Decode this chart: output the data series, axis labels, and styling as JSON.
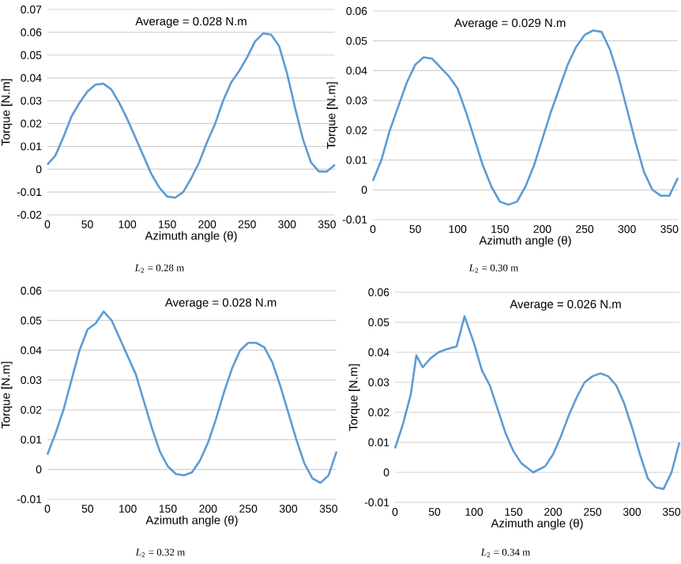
{
  "chart_data": [
    {
      "type": "line",
      "xlabel": "Azimuth angle (θ)",
      "ylabel": "Torque [N.m]",
      "x": [
        0,
        10,
        20,
        30,
        40,
        50,
        60,
        70,
        80,
        90,
        100,
        110,
        120,
        130,
        140,
        150,
        160,
        170,
        180,
        190,
        200,
        210,
        220,
        230,
        240,
        250,
        260,
        270,
        280,
        290,
        300,
        310,
        320,
        330,
        340,
        350,
        360
      ],
      "series": [
        {
          "color": "#5b9bd5",
          "values": [
            0.002,
            0.006,
            0.014,
            0.023,
            0.029,
            0.034,
            0.037,
            0.0375,
            0.035,
            0.029,
            0.022,
            0.014,
            0.006,
            -0.002,
            -0.008,
            -0.012,
            -0.0125,
            -0.01,
            -0.004,
            0.003,
            0.012,
            0.02,
            0.03,
            0.038,
            0.043,
            0.049,
            0.056,
            0.0595,
            0.059,
            0.054,
            0.042,
            0.027,
            0.013,
            0.003,
            -0.001,
            -0.001,
            0.002
          ]
        }
      ],
      "xlim": [
        0,
        360
      ],
      "xticks": [
        0,
        50,
        100,
        150,
        200,
        250,
        300,
        350
      ],
      "ylim": [
        -0.02,
        0.07
      ],
      "yticks": [
        -0.02,
        -0.01,
        0,
        0.01,
        0.02,
        0.03,
        0.04,
        0.05,
        0.06,
        0.07
      ],
      "grid": "y",
      "annotations": [
        "Average = 0.028 N.m",
        "*L*$_{2}$ = 0.28 m"
      ]
    },
    {
      "type": "line",
      "xlabel": "Azimuth angle (θ)",
      "ylabel": "Torque [N.m]",
      "x": [
        0,
        10,
        20,
        30,
        40,
        50,
        60,
        70,
        80,
        90,
        100,
        110,
        120,
        130,
        140,
        150,
        160,
        170,
        180,
        190,
        200,
        210,
        220,
        230,
        240,
        250,
        260,
        270,
        280,
        290,
        300,
        310,
        320,
        330,
        340,
        350,
        360
      ],
      "series": [
        {
          "color": "#5b9bd5",
          "values": [
            0.003,
            0.01,
            0.02,
            0.028,
            0.036,
            0.042,
            0.0445,
            0.044,
            0.041,
            0.038,
            0.034,
            0.026,
            0.017,
            0.008,
            0.001,
            -0.004,
            -0.005,
            -0.004,
            0.001,
            0.008,
            0.017,
            0.026,
            0.034,
            0.042,
            0.048,
            0.052,
            0.0535,
            0.053,
            0.047,
            0.038,
            0.027,
            0.016,
            0.006,
            0.0,
            -0.002,
            -0.002,
            0.004
          ]
        }
      ],
      "xlim": [
        0,
        360
      ],
      "xticks": [
        0,
        50,
        100,
        150,
        200,
        250,
        300,
        350
      ],
      "ylim": [
        -0.01,
        0.06
      ],
      "yticks": [
        -0.01,
        0,
        0.01,
        0.02,
        0.03,
        0.04,
        0.05,
        0.06
      ],
      "grid": "y",
      "annotations": [
        "Average = 0.029 N.m",
        "*L*$_{2}$ = 0.30 m"
      ]
    },
    {
      "type": "line",
      "xlabel": "Azimuth angle (θ)",
      "ylabel": "Torque [N.m]",
      "x": [
        0,
        10,
        20,
        30,
        40,
        50,
        60,
        70,
        80,
        90,
        100,
        110,
        120,
        130,
        140,
        150,
        160,
        170,
        180,
        190,
        200,
        210,
        220,
        230,
        240,
        250,
        260,
        270,
        280,
        290,
        300,
        310,
        320,
        330,
        340,
        350,
        360
      ],
      "series": [
        {
          "color": "#5b9bd5",
          "values": [
            0.005,
            0.012,
            0.02,
            0.03,
            0.04,
            0.047,
            0.049,
            0.053,
            0.05,
            0.044,
            0.038,
            0.032,
            0.023,
            0.014,
            0.006,
            0.001,
            -0.0015,
            -0.002,
            -0.001,
            0.003,
            0.009,
            0.017,
            0.026,
            0.034,
            0.04,
            0.0425,
            0.0425,
            0.041,
            0.036,
            0.028,
            0.019,
            0.01,
            0.002,
            -0.003,
            -0.0045,
            -0.002,
            0.006
          ]
        }
      ],
      "xlim": [
        0,
        360
      ],
      "xticks": [
        0,
        50,
        100,
        150,
        200,
        250,
        300,
        350
      ],
      "ylim": [
        -0.01,
        0.06
      ],
      "yticks": [
        -0.01,
        0,
        0.01,
        0.02,
        0.03,
        0.04,
        0.05,
        0.06
      ],
      "grid": "y",
      "annotations": [
        "Average = 0.028 N.m",
        "*L*$_{2}$ = 0.32 m"
      ]
    },
    {
      "type": "line",
      "xlabel": "Azimuth angle (θ)",
      "ylabel": "Torque [N.m]",
      "x": [
        0,
        10,
        20,
        27,
        35,
        45,
        55,
        65,
        78,
        88,
        100,
        110,
        120,
        130,
        140,
        150,
        160,
        175,
        190,
        200,
        210,
        220,
        230,
        240,
        250,
        260,
        270,
        280,
        290,
        300,
        310,
        320,
        330,
        340,
        350,
        360
      ],
      "series": [
        {
          "color": "#5b9bd5",
          "values": [
            0.008,
            0.016,
            0.026,
            0.039,
            0.035,
            0.038,
            0.04,
            0.041,
            0.042,
            0.052,
            0.043,
            0.034,
            0.029,
            0.021,
            0.013,
            0.007,
            0.003,
            0.0,
            0.002,
            0.006,
            0.012,
            0.019,
            0.025,
            0.03,
            0.032,
            0.033,
            0.032,
            0.029,
            0.023,
            0.015,
            0.006,
            -0.002,
            -0.005,
            -0.0055,
            0.0,
            0.01
          ]
        }
      ],
      "xlim": [
        0,
        360
      ],
      "xticks": [
        0,
        50,
        100,
        150,
        200,
        250,
        300,
        350
      ],
      "ylim": [
        -0.01,
        0.06
      ],
      "yticks": [
        -0.01,
        0,
        0.01,
        0.02,
        0.03,
        0.04,
        0.05,
        0.06
      ],
      "grid": "y",
      "annotations": [
        "Average = 0.026 N.m",
        "*L*$_{2}$ = 0.34 m"
      ]
    }
  ]
}
